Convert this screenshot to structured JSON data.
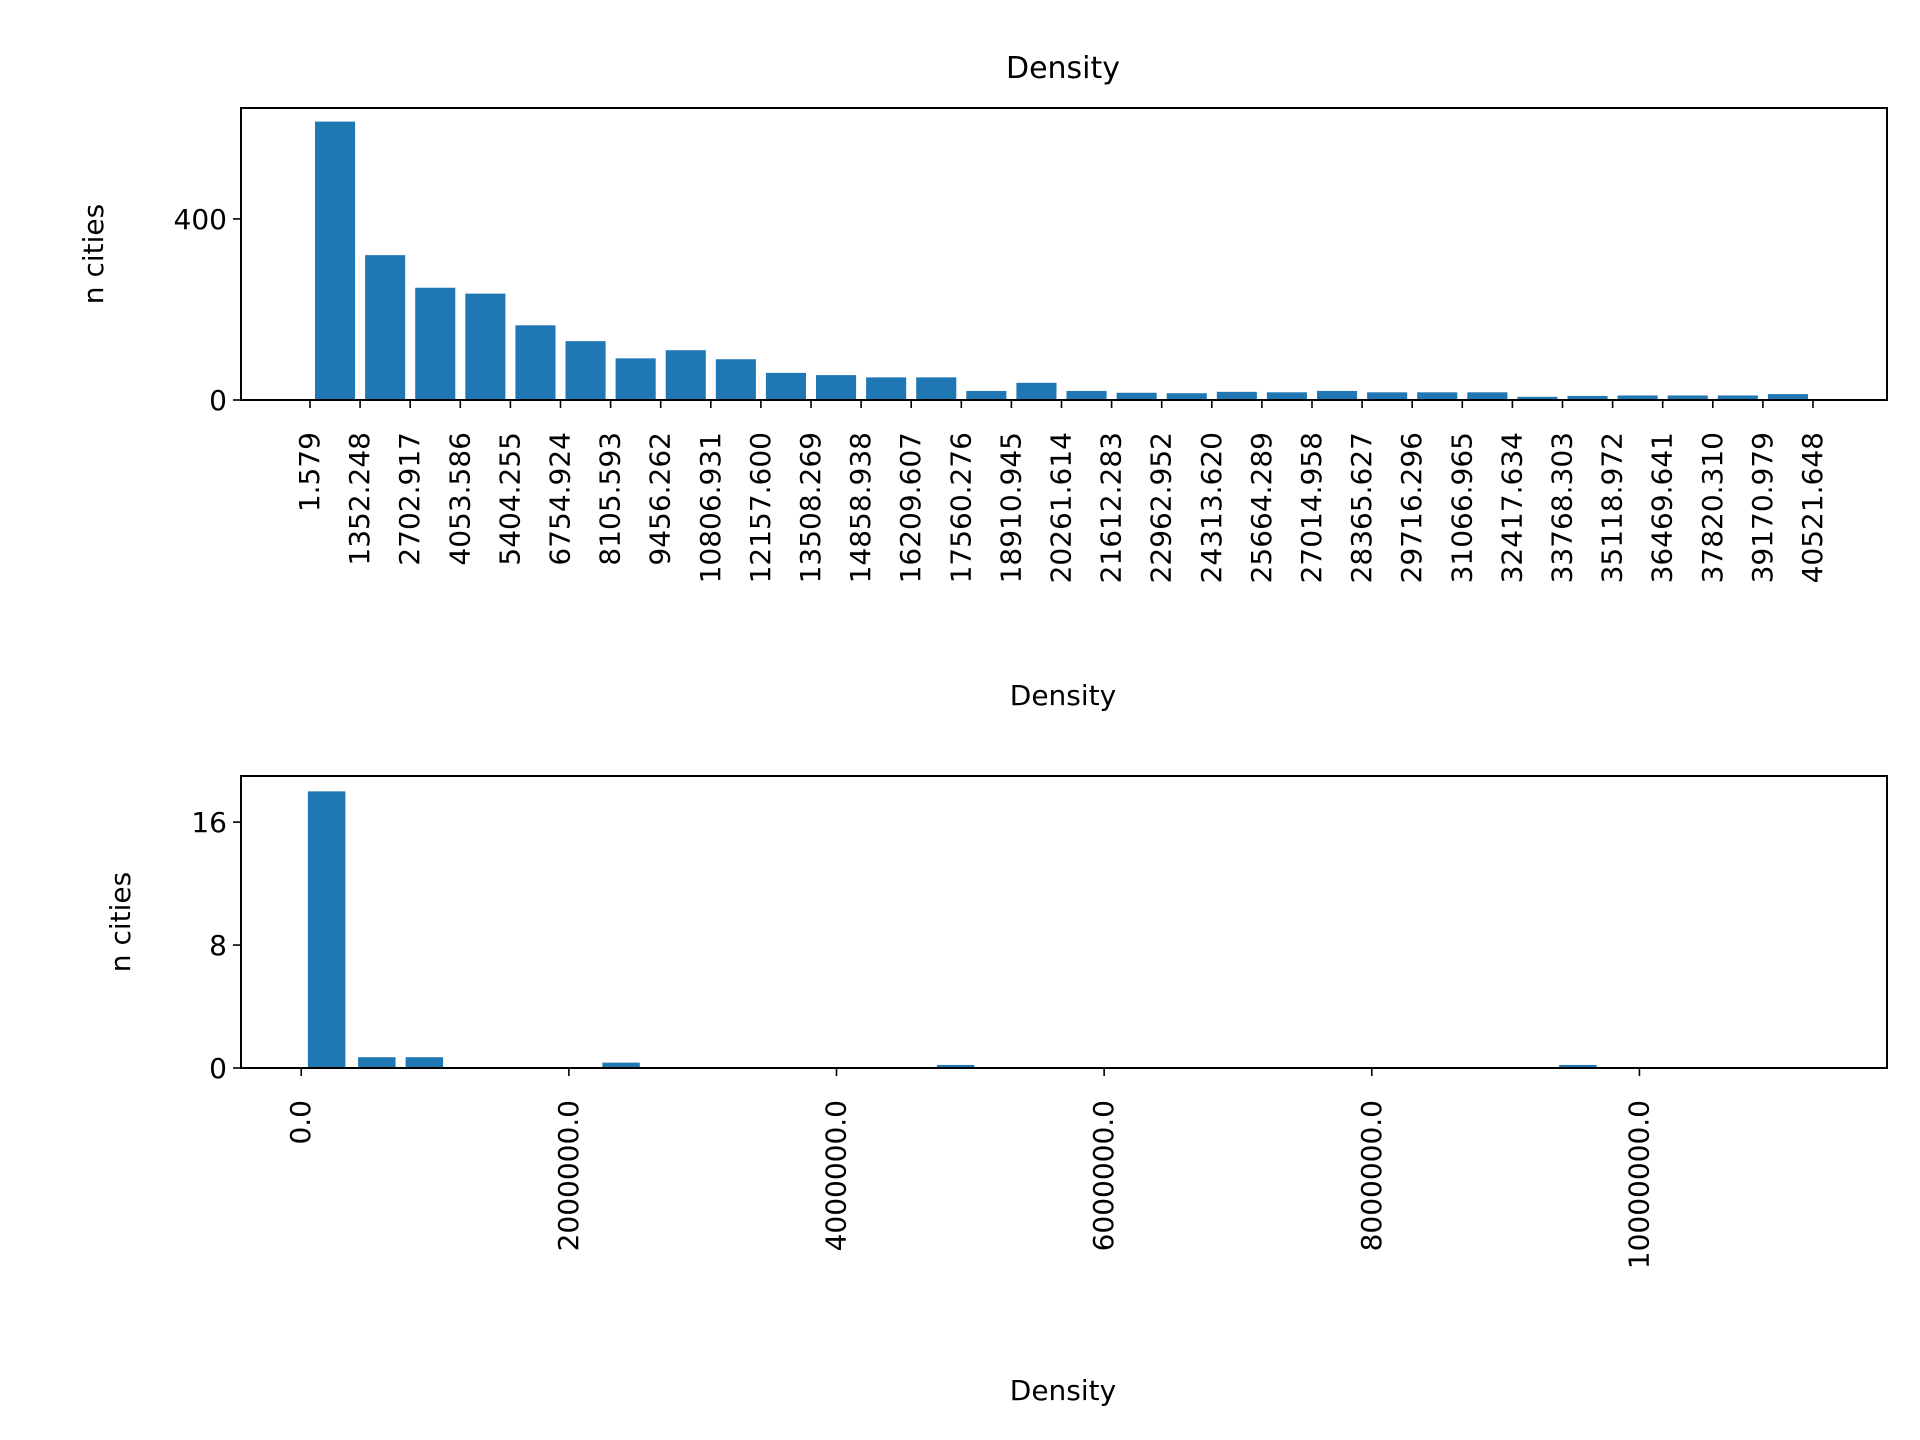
{
  "title": "Density",
  "colors": {
    "bar": "#1f77b4",
    "axes": "#000000",
    "background": "#ffffff"
  },
  "chart_data": [
    {
      "type": "bar",
      "title": "Density",
      "xlabel": "Density",
      "ylabel": "n cities",
      "grid": false,
      "bar_edges": [
        1.579,
        1352.248,
        2702.917,
        4053.586,
        5404.255,
        6754.924,
        8105.593,
        9456.262,
        10806.931,
        12157.6,
        13508.269,
        14858.938,
        16209.607,
        17560.276,
        18910.945,
        20261.614,
        21612.283,
        22962.952,
        24313.62,
        25664.289,
        27014.958,
        28365.627,
        29716.296,
        31066.965,
        32417.634,
        33768.303,
        35118.972,
        36469.641,
        37820.31,
        39170.979,
        40521.648
      ],
      "tick_labels": [
        "1.579",
        "1352.248",
        "2702.917",
        "4053.586",
        "5404.255",
        "6754.924",
        "8105.593",
        "9456.262",
        "10806.931",
        "12157.600",
        "13508.269",
        "14858.938",
        "16209.607",
        "17560.276",
        "18910.945",
        "20261.614",
        "21612.283",
        "22962.952",
        "24313.620",
        "25664.289",
        "27014.958",
        "28365.627",
        "29716.296",
        "31066.965",
        "32417.634",
        "33768.303",
        "35118.972",
        "36469.641",
        "37820.310",
        "39170.979",
        "40521.648"
      ],
      "values": [
        615,
        320,
        248,
        235,
        165,
        130,
        92,
        110,
        90,
        60,
        55,
        50,
        50,
        20,
        38,
        20,
        16,
        15,
        18,
        17,
        20,
        17,
        17,
        17,
        7,
        9,
        10,
        10,
        10,
        13
      ],
      "yticks": [
        0,
        400
      ],
      "ylim": [
        0,
        645
      ]
    },
    {
      "type": "bar",
      "title": "",
      "xlabel": "Density",
      "ylabel": "n cities",
      "grid": false,
      "bins": [
        {
          "left": 50000,
          "width": 280000,
          "value": 18
        },
        {
          "left": 425000,
          "width": 280000,
          "value": 0.7
        },
        {
          "left": 780000,
          "width": 280000,
          "value": 0.7
        },
        {
          "left": 2250000,
          "width": 280000,
          "value": 0.35
        },
        {
          "left": 4750000,
          "width": 280000,
          "value": 0.2
        },
        {
          "left": 9400000,
          "width": 280000,
          "value": 0.2
        }
      ],
      "xticks": [
        0,
        2000000,
        4000000,
        6000000,
        8000000,
        10000000
      ],
      "tick_labels": [
        "0.0",
        "2000000.0",
        "4000000.0",
        "6000000.0",
        "8000000.0",
        "10000000.0"
      ],
      "yticks": [
        0,
        8,
        16
      ],
      "ylim": [
        0,
        19
      ],
      "xlim": [
        -450000,
        11850000
      ]
    }
  ]
}
